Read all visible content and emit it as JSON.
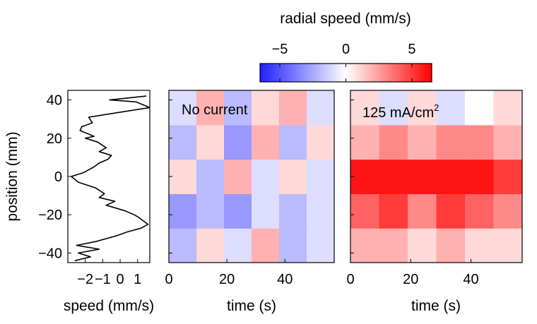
{
  "chart_data": [
    {
      "type": "line",
      "panel": "speed-profile",
      "xlabel": "speed (mm/s)",
      "ylabel": "position (mm)",
      "xlim": [
        -3.0,
        1.7
      ],
      "ylim": [
        -45,
        45
      ],
      "xticks": [
        -2,
        -1,
        0,
        1
      ],
      "xtick_labels": [
        "−2",
        "−1",
        "0",
        "1"
      ],
      "yticks": [
        -40,
        -20,
        0,
        20,
        40
      ],
      "ytick_labels": [
        "−40",
        "−20",
        "0",
        "20",
        "40"
      ],
      "series": [
        {
          "x": [
            1.5,
            -0.6,
            0.9,
            1.7,
            0.3,
            -1.8,
            -1.6,
            -2.2,
            -2.3,
            -1.5,
            -2.0,
            -1.3,
            -0.8,
            -1.2,
            -0.5,
            -0.7,
            -1.2,
            -1.5,
            -2.1,
            -2.8,
            -2.4,
            -1.4,
            -0.9,
            -1.2,
            -0.3,
            -0.8,
            0.3,
            0.8,
            1.0,
            1.3,
            1.6,
            1.2,
            0.4,
            -0.2,
            -1.4,
            -2.5,
            -1.2,
            -2.4,
            -1.7,
            -2.6
          ],
          "y": [
            42,
            40,
            39,
            36,
            34,
            31,
            28,
            26,
            24,
            21,
            20,
            18,
            15,
            13,
            11,
            9,
            7,
            5,
            2,
            0,
            -3,
            -6,
            -9,
            -11,
            -13,
            -15,
            -18,
            -20,
            -21,
            -23,
            -25,
            -27,
            -29,
            -31,
            -34,
            -36,
            -38,
            -40,
            -42,
            -44
          ]
        }
      ]
    },
    {
      "type": "heatmap",
      "panel": "no-current",
      "annotation": "No current",
      "xlabel": "time (s)",
      "xlim": [
        0,
        57
      ],
      "ylim": [
        -45,
        45
      ],
      "xticks": [
        0,
        20,
        40
      ],
      "xtick_labels": [
        "0",
        "20",
        "40"
      ],
      "rows_position_mm": [
        -40,
        -20,
        0,
        20,
        40
      ],
      "cols_time_s": [
        5,
        15,
        25,
        35,
        45,
        55
      ],
      "values": [
        [
          -2,
          1,
          -1,
          2,
          -2,
          -1
        ],
        [
          -3,
          -2,
          -3,
          -1,
          -2,
          -1
        ],
        [
          1,
          -2,
          2,
          -1,
          1,
          -1
        ],
        [
          -2,
          1,
          -3,
          2,
          -2,
          1
        ],
        [
          -1,
          2,
          -2,
          1,
          2,
          -1
        ]
      ]
    },
    {
      "type": "heatmap",
      "panel": "current-125",
      "annotation_prefix": "125 mA/cm",
      "annotation_exp": "2",
      "xlabel": "time (s)",
      "xlim": [
        0,
        57
      ],
      "ylim": [
        -45,
        45
      ],
      "xticks": [
        0,
        20,
        40
      ],
      "xtick_labels": [
        "0",
        "20",
        "40"
      ],
      "rows_position_mm": [
        -40,
        -20,
        0,
        20,
        40
      ],
      "cols_time_s": [
        5,
        15,
        25,
        35,
        45,
        55
      ],
      "values": [
        [
          2,
          2,
          1,
          2,
          1,
          1
        ],
        [
          4,
          5,
          3,
          5,
          4,
          3
        ],
        [
          6,
          6,
          6,
          6,
          6,
          5
        ],
        [
          2,
          3,
          2,
          3,
          3,
          2
        ],
        [
          1,
          -1,
          1,
          -1,
          0,
          1
        ]
      ]
    }
  ],
  "colorbar": {
    "title": "radial speed (mm/s)",
    "min": -6.5,
    "max": 6.5,
    "ticks": [
      -5,
      0,
      5
    ],
    "tick_labels": [
      "−5",
      "0",
      "5"
    ],
    "colors": {
      "negative": "#1f1fff",
      "zero": "#ffffff",
      "positive": "#ff0000"
    }
  }
}
